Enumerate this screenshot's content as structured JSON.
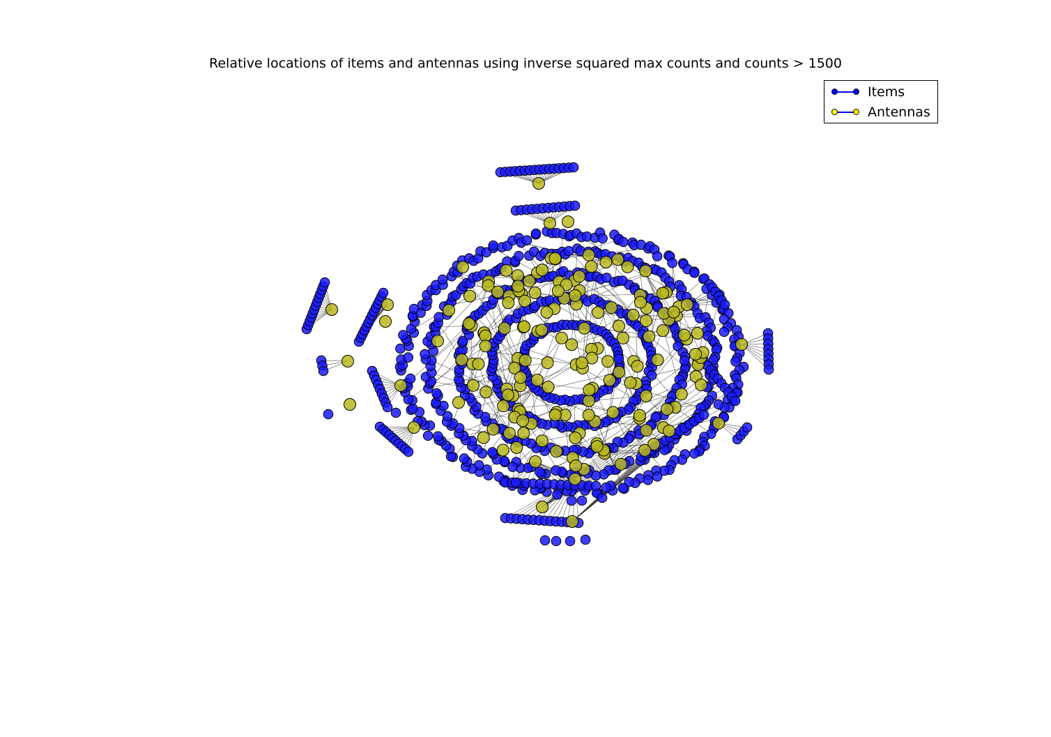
{
  "figure": {
    "title": "Relative locations of items and antennas using inverse squared max counts and counts > 1500"
  },
  "legend": {
    "items": [
      {
        "label": "Items",
        "color": "#0000ff",
        "marker_color": "#0000ff"
      },
      {
        "label": "Antennas",
        "color": "#0000ff",
        "marker_color": "#ffff00"
      }
    ]
  },
  "colors": {
    "item_node": "#1a1aff",
    "antenna_node": "#b8b820",
    "edge": "#333333"
  }
}
